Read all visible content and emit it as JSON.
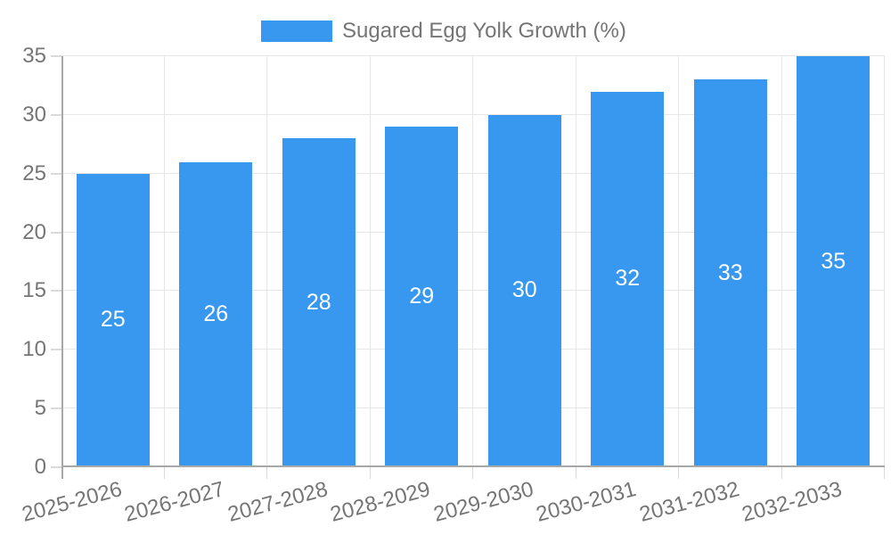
{
  "legend": {
    "position": "top",
    "label": "Sugared Egg Yolk Growth (%)"
  },
  "chart_data": {
    "type": "bar",
    "title": "Sugared Egg Yolk Growth (%)",
    "categories": [
      "2025-2026",
      "2026-2027",
      "2027-2028",
      "2028-2029",
      "2029-2030",
      "2030-2031",
      "2031-2032",
      "2032-2033"
    ],
    "values": [
      25,
      26,
      28,
      29,
      30,
      32,
      33,
      35
    ],
    "xlabel": "",
    "ylabel": "",
    "ylim": [
      0,
      35
    ],
    "ytick_step": 5,
    "yticks": [
      0,
      5,
      10,
      15,
      20,
      25,
      30,
      35
    ],
    "grid": "on",
    "legend_position": "top-center",
    "value_labels": "inside-middle-white",
    "x_label_rotation_deg": -15
  },
  "styles": {
    "bar_color": "#3898F0",
    "grid_color": "#E6E6E6",
    "tick_color": "#DADADA",
    "axis_color": "#A8A8A8",
    "label_color": "#757575",
    "value_label_color": "#FFFFFF",
    "background_color": "#FFFFFF"
  }
}
